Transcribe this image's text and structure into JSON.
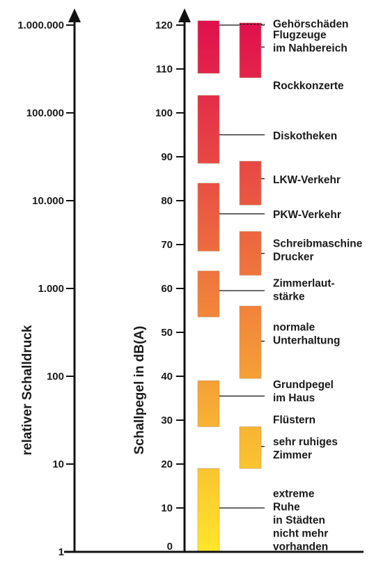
{
  "chart_data": {
    "type": "bar",
    "title": "",
    "axes": {
      "left": {
        "label": "relativer Schalldruck",
        "scale": "log",
        "ticks": [
          "1",
          "10",
          "100",
          "1.000",
          "10.000",
          "100.000",
          "1.000.000"
        ]
      },
      "right": {
        "label": "Schallpegel in dB(A)",
        "ylim": [
          0,
          120
        ],
        "ticks": [
          "0",
          "10",
          "20",
          "30",
          "40",
          "50",
          "60",
          "70",
          "80",
          "90",
          "100",
          "110",
          "120"
        ]
      }
    },
    "colors": {
      "low": "#ffe62a",
      "high": "#e0104e"
    },
    "series": [
      {
        "column": "left",
        "ranges": [
          {
            "label": "extreme Ruhe in Städten nicht mehr vorhanden",
            "min": 0,
            "max": 19,
            "label_db": 10
          },
          {
            "label": "Grundpegel im Haus",
            "min": 28.5,
            "max": 39,
            "label_db": 35.5
          },
          {
            "label": "Zimmerlautstärke",
            "min": 53.5,
            "max": 64,
            "label_db": 59.5
          },
          {
            "label": "PKW-Verkehr",
            "min": 68.5,
            "max": 84,
            "label_db": 77
          },
          {
            "label": "Diskotheken",
            "min": 88.5,
            "max": 104,
            "label_db": 95
          },
          {
            "label": "Gehörschäden",
            "min": 109,
            "max": 121,
            "label_db": 120
          }
        ]
      },
      {
        "column": "right",
        "ranges": [
          {
            "label": "sehr ruhiges Zimmer",
            "min": 19,
            "max": 28.5,
            "label_db": 24
          },
          {
            "label": "normale Unterhaltung",
            "min": 39.5,
            "max": 56,
            "label_db": 48
          },
          {
            "label": "Schreibmaschine Drucker",
            "min": 63,
            "max": 73,
            "label_db": 68
          },
          {
            "label": "LKW-Verkehr",
            "min": 79,
            "max": 89,
            "label_db": 85
          },
          {
            "label": "Flugzeuge im Nahbereich",
            "min": 108,
            "max": 120.5,
            "label_db": 115
          }
        ]
      }
    ],
    "text_labels": [
      {
        "id": "gehoerschaeden",
        "lines": [
          "Gehörschäden"
        ],
        "db": 120.2
      },
      {
        "id": "flugzeuge",
        "lines": [
          "Flugzeuge",
          "im Nahbereich"
        ],
        "db": 116.3
      },
      {
        "id": "rockkonzerte",
        "lines": [
          "Rockkonzerte"
        ],
        "db": 106.2
      },
      {
        "id": "diskotheken",
        "lines": [
          "Diskotheken"
        ],
        "db": 94.8
      },
      {
        "id": "lkw",
        "lines": [
          "LKW-Verkehr"
        ],
        "db": 84.8
      },
      {
        "id": "pkw",
        "lines": [
          "PKW-Verkehr"
        ],
        "db": 76.8
      },
      {
        "id": "schreibmaschine",
        "lines": [
          "Schreibmaschine",
          "Drucker"
        ],
        "db": 68.7
      },
      {
        "id": "zimmerlaut",
        "lines": [
          "Zimmerlaut-",
          "stärke"
        ],
        "db": 59.7
      },
      {
        "id": "unterhaltung",
        "lines": [
          "normale",
          "Unterhaltung"
        ],
        "db": 49.7
      },
      {
        "id": "grundpegel",
        "lines": [
          "Grundpegel",
          "im Haus"
        ],
        "db": 36.6
      },
      {
        "id": "fluestern",
        "lines": [
          "Flüstern"
        ],
        "db": 30.1
      },
      {
        "id": "ruhiges",
        "lines": [
          "sehr ruhiges",
          "Zimmer"
        ],
        "db": 23.6
      },
      {
        "id": "ruhe",
        "lines": [
          "extreme",
          "Ruhe",
          "in Städten",
          "nicht mehr",
          "vorhanden"
        ],
        "db": 7.2
      }
    ]
  }
}
